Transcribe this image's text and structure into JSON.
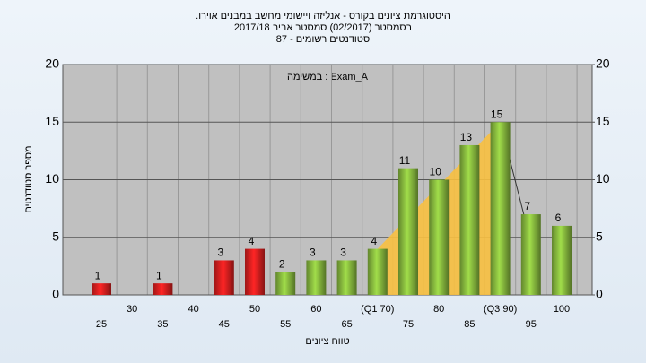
{
  "chart_data": {
    "type": "bar",
    "title": ".היסטוגרמת ציונים בקורס - אנליזה ויישומי מחשב במבנים אוירו",
    "subtitle": "בסמסטר  (02/2017)  סמסטר אביב 2017/18",
    "subtitle2": "סטודנטים רשומים - 87",
    "annotation": "במשימה : Exam_A",
    "x_label": "טווח ציונים",
    "y_label": "מספר סטודנטים",
    "categories": [
      "25",
      "30",
      "35",
      "40",
      "45",
      "50",
      "55",
      "60",
      "65",
      "(Q1 70)",
      "75",
      "80",
      "85",
      "(Q3 90)",
      "95",
      "100"
    ],
    "values": [
      1,
      null,
      1,
      null,
      3,
      4,
      2,
      3,
      3,
      4,
      11,
      10,
      13,
      15,
      7,
      6
    ],
    "colors": [
      "#e02020",
      null,
      "#e02020",
      null,
      "#e02020",
      "#e02020",
      "#8cc040",
      "#8cc040",
      "#8cc040",
      "#8cc040",
      "#8cc040",
      "#8cc040",
      "#8cc040",
      "#8cc040",
      "#8cc040",
      "#8cc040"
    ],
    "ylim": [
      0,
      20
    ],
    "yticks": [
      0,
      5,
      10,
      15,
      20
    ],
    "y2lim": [
      0,
      20
    ],
    "y2ticks": [
      0,
      5,
      10,
      15,
      20
    ],
    "grid": true
  }
}
